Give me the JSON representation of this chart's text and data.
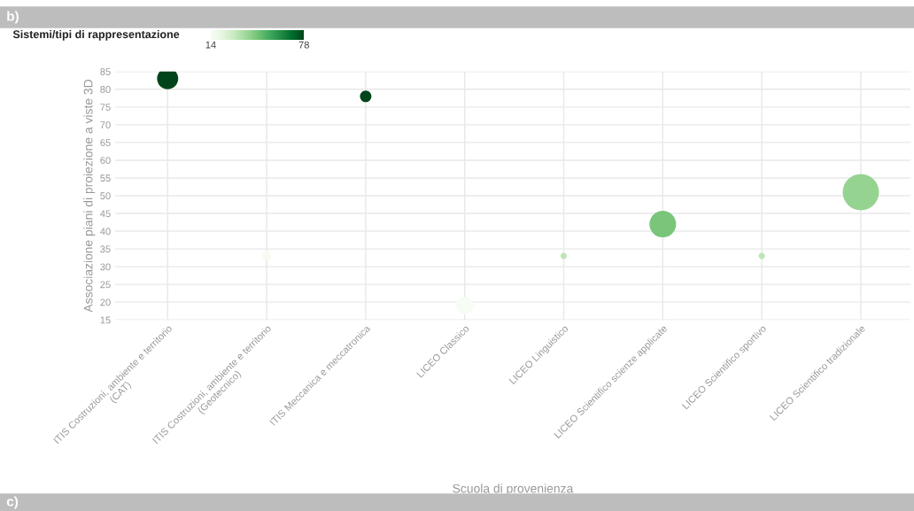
{
  "chart_data": {
    "type": "bubble",
    "xlabel": "Scuola di provenienza",
    "ylabel": "Associazione piani di proiezione a viste 3D",
    "clabel": "Sistemi/tipi di rappresentazione",
    "annotations": [
      "b)",
      "c)"
    ],
    "categories": [
      "ITIS Costruzioni, ambiente e territorio\n(CAT)",
      "ITIS Costruzioni, ambiente e territorio\n(Geotecnico)",
      "ITIS Meccanica e meccatronica",
      "LICEO Classico",
      "LICEO Linguistico",
      "LICEO Scientifico scienze applicate",
      "LICEO Scientifico sportivo",
      "LICEO Scientifico tradizionale"
    ],
    "values": [
      83,
      33,
      78,
      19,
      33,
      42,
      33,
      51
    ],
    "sizes": [
      0.34,
      0.06,
      0.1,
      0.24,
      0.03,
      0.54,
      0.03,
      1
    ],
    "cvalues": [
      78,
      15,
      78,
      14,
      32,
      45,
      32,
      40
    ],
    "clim": [
      14,
      78
    ],
    "cticks": [
      14,
      78
    ],
    "ylim": [
      15,
      85
    ],
    "yticks": [
      15,
      20,
      25,
      30,
      35,
      40,
      45,
      50,
      55,
      60,
      65,
      70,
      75,
      80,
      85
    ],
    "grid": true,
    "legend": false
  }
}
